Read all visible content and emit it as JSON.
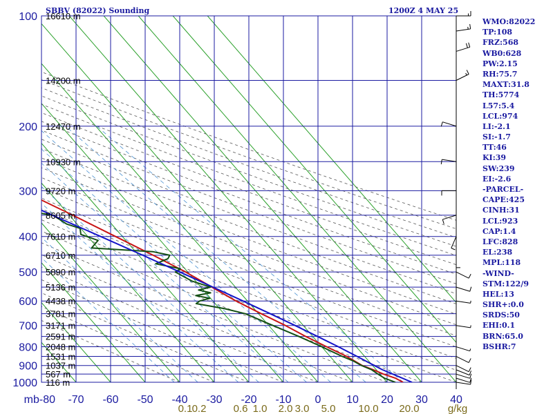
{
  "header": {
    "title": "SBBV (82022) Sounding",
    "time": "1200Z  4 MAY 25"
  },
  "indices": [
    "WMO:82022",
    "TP:108",
    "FRZ:568",
    "WB0:628",
    "PW:2.15",
    "RH:75.7",
    "MAXT:31.8",
    "TH:5774",
    "L57:5.4",
    "LCL:974",
    "LI:-2.1",
    "SI:-1.7",
    "TT:46",
    "KI:39",
    "SW:239",
    "EI:-2.6",
    "-PARCEL-",
    "CAPE:425",
    "CINH:31",
    "LCL:923",
    "CAP:1.4",
    "LFC:828",
    "EL:238",
    "MPL:118",
    "-WIND-",
    "STM:122/9",
    "HEL:13",
    "SHR+:0.0",
    "SRDS:50",
    "EHI:0.1",
    "BRN:65.0",
    "BSHR:7"
  ],
  "colors": {
    "grid": "#1a1aa0",
    "isotherm": "#2aa02a",
    "dry_adiabat": "#555555",
    "mixing_ratio": "#4a90d0",
    "temperature": "#c81414",
    "dewpoint": "#145014",
    "parcel": "#1414c8",
    "mixing_label": "#7a6a1a"
  },
  "chart_data": {
    "type": "skew-t",
    "title": "SBBV (82022) Sounding",
    "xlabel": "",
    "ylabel": "mb",
    "pressure_range": [
      1000,
      100
    ],
    "temperature_range": [
      -80,
      40
    ],
    "pressure_ticks": [
      100,
      200,
      300,
      400,
      500,
      600,
      700,
      800,
      900,
      1000
    ],
    "pressure_tick_labels": [
      "100",
      "200",
      "300",
      "400",
      "500",
      "600",
      "700",
      "800",
      "900",
      "1000"
    ],
    "temperature_ticks": [
      -80,
      -70,
      -60,
      -50,
      -40,
      -30,
      -20,
      -10,
      0,
      10,
      20,
      30,
      40
    ],
    "temperature_tick_labels": [
      "mb-80",
      "-70",
      "-60",
      "-50",
      "-40",
      "-30",
      "-20",
      "-10",
      "0",
      "10",
      "20",
      "30",
      "40"
    ],
    "mixing_ratio_labels": [
      "0.1",
      "0.2",
      "0.6",
      "1.0",
      "2.0",
      "3.0",
      "5.0",
      "10.0",
      "20.0",
      "g/kg"
    ],
    "mixing_ratio_values": [
      0.1,
      0.2,
      0.6,
      1.0,
      2.0,
      3.0,
      5.0,
      10.0,
      20.0
    ],
    "height_labels": [
      {
        "pressure": 100,
        "label": "16610 m"
      },
      {
        "pressure": 150,
        "label": "14200 m"
      },
      {
        "pressure": 200,
        "label": "12470 m"
      },
      {
        "pressure": 250,
        "label": "10930 m"
      },
      {
        "pressure": 300,
        "label": "9720 m"
      },
      {
        "pressure": 350,
        "label": "8605 m"
      },
      {
        "pressure": 400,
        "label": "7610 m"
      },
      {
        "pressure": 450,
        "label": "6710 m"
      },
      {
        "pressure": 500,
        "label": "5890 m"
      },
      {
        "pressure": 550,
        "label": "5136 m"
      },
      {
        "pressure": 600,
        "label": "4438 m"
      },
      {
        "pressure": 650,
        "label": "3781 m"
      },
      {
        "pressure": 700,
        "label": "3171 m"
      },
      {
        "pressure": 750,
        "label": "2591 m"
      },
      {
        "pressure": 800,
        "label": "2048 m"
      },
      {
        "pressure": 850,
        "label": "1531 m"
      },
      {
        "pressure": 900,
        "label": "1037 m"
      },
      {
        "pressure": 950,
        "label": "567 m"
      },
      {
        "pressure": 1000,
        "label": "116 m"
      }
    ],
    "series": [
      {
        "name": "",
        "kind": "temperature",
        "points": [
          [
            1000,
            24.6
          ],
          [
            975,
            23.5
          ],
          [
            950,
            21.0
          ],
          [
            925,
            19.2
          ],
          [
            900,
            17.0
          ],
          [
            850,
            14.8
          ],
          [
            800,
            11.4
          ],
          [
            750,
            8.0
          ],
          [
            700,
            4.8
          ],
          [
            650,
            0.8
          ],
          [
            600,
            -3.3
          ],
          [
            570,
            -5.4
          ],
          [
            550,
            -6.8
          ],
          [
            500,
            -10.6
          ],
          [
            450,
            -15.8
          ],
          [
            400,
            -22.0
          ],
          [
            350,
            -29.0
          ],
          [
            300,
            -37.5
          ],
          [
            250,
            -47.2
          ],
          [
            200,
            -57.4
          ],
          [
            175,
            -63.0
          ],
          [
            150,
            -69.0
          ],
          [
            125,
            -76.4
          ],
          [
            110,
            -80.0
          ],
          [
            100,
            -79.0
          ]
        ]
      },
      {
        "name": "",
        "kind": "dewpoint",
        "points": [
          [
            1000,
            22.4
          ],
          [
            975,
            20.3
          ],
          [
            950,
            19.4
          ],
          [
            925,
            18.7
          ],
          [
            900,
            16.8
          ],
          [
            875,
            15.6
          ],
          [
            850,
            13.5
          ],
          [
            800,
            10.0
          ],
          [
            750,
            6.0
          ],
          [
            700,
            1.2
          ],
          [
            650,
            -3.8
          ],
          [
            630,
            -8.5
          ],
          [
            610,
            -15.5
          ],
          [
            600,
            -13.8
          ],
          [
            590,
            -10.2
          ],
          [
            580,
            -13.6
          ],
          [
            570,
            -8.6
          ],
          [
            560,
            -11.4
          ],
          [
            550,
            -7.2
          ],
          [
            530,
            -11.0
          ],
          [
            500,
            -13.6
          ],
          [
            490,
            -11.3
          ],
          [
            475,
            -17.2
          ],
          [
            460,
            -12.4
          ],
          [
            450,
            -11.0
          ],
          [
            440,
            -15.0
          ],
          [
            430,
            -31.8
          ],
          [
            410,
            -28.0
          ],
          [
            395,
            -31.5
          ],
          [
            380,
            -30.2
          ],
          [
            370,
            -33.0
          ],
          [
            350,
            -34.7
          ],
          [
            340,
            -42.0
          ],
          [
            320,
            -38.0
          ],
          [
            300,
            -40.2
          ],
          [
            280,
            -44.5
          ],
          [
            260,
            -47.6
          ],
          [
            245,
            -52.0
          ],
          [
            230,
            -55.0
          ],
          [
            215,
            -60.0
          ],
          [
            205,
            -63.5
          ],
          [
            195,
            -61.6
          ],
          [
            180,
            -64.5
          ],
          [
            160,
            -72.5
          ],
          [
            150,
            -77.5
          ],
          [
            130,
            -82.0
          ],
          [
            125,
            -84.6
          ]
        ]
      },
      {
        "name": "",
        "kind": "parcel",
        "points": [
          [
            1000,
            27.2
          ],
          [
            950,
            23.7
          ],
          [
            923,
            21.7
          ],
          [
            900,
            20.5
          ],
          [
            850,
            17.8
          ],
          [
            828,
            16.5
          ],
          [
            800,
            14.8
          ],
          [
            750,
            11.4
          ],
          [
            700,
            7.6
          ],
          [
            650,
            3.4
          ],
          [
            600,
            -1.3
          ],
          [
            550,
            -6.5
          ],
          [
            500,
            -12.3
          ],
          [
            450,
            -18.8
          ],
          [
            400,
            -26.3
          ],
          [
            350,
            -34.9
          ],
          [
            300,
            -44.5
          ],
          [
            250,
            -55.2
          ],
          [
            238,
            -57.8
          ],
          [
            200,
            -66.5
          ],
          [
            150,
            -80.6
          ],
          [
            118,
            -91.8
          ],
          [
            110,
            -94.5
          ],
          [
            100,
            -98.0
          ]
        ]
      }
    ],
    "wind_barbs": [
      {
        "pressure": 1000,
        "dir_deg": 100,
        "speed_kt": 10
      },
      {
        "pressure": 975,
        "dir_deg": 110,
        "speed_kt": 10
      },
      {
        "pressure": 950,
        "dir_deg": 110,
        "speed_kt": 10
      },
      {
        "pressure": 925,
        "dir_deg": 115,
        "speed_kt": 10
      },
      {
        "pressure": 900,
        "dir_deg": 120,
        "speed_kt": 10
      },
      {
        "pressure": 850,
        "dir_deg": 120,
        "speed_kt": 10
      },
      {
        "pressure": 800,
        "dir_deg": 110,
        "speed_kt": 5
      },
      {
        "pressure": 700,
        "dir_deg": 100,
        "speed_kt": 5
      },
      {
        "pressure": 600,
        "dir_deg": 100,
        "speed_kt": 5
      },
      {
        "pressure": 550,
        "dir_deg": 110,
        "speed_kt": 10
      },
      {
        "pressure": 500,
        "dir_deg": 120,
        "speed_kt": 10
      },
      {
        "pressure": 450,
        "dir_deg": 180,
        "speed_kt": 10
      },
      {
        "pressure": 400,
        "dir_deg": 200,
        "speed_kt": 10
      },
      {
        "pressure": 350,
        "dir_deg": 250,
        "speed_kt": 10
      },
      {
        "pressure": 300,
        "dir_deg": 270,
        "speed_kt": 10
      },
      {
        "pressure": 250,
        "dir_deg": 280,
        "speed_kt": 10
      },
      {
        "pressure": 200,
        "dir_deg": 290,
        "speed_kt": 10
      },
      {
        "pressure": 150,
        "dir_deg": 60,
        "speed_kt": 15
      },
      {
        "pressure": 125,
        "dir_deg": 70,
        "speed_kt": 20
      },
      {
        "pressure": 110,
        "dir_deg": 80,
        "speed_kt": 15
      },
      {
        "pressure": 100,
        "dir_deg": 90,
        "speed_kt": 15
      }
    ],
    "grid": true,
    "legend": "none"
  }
}
